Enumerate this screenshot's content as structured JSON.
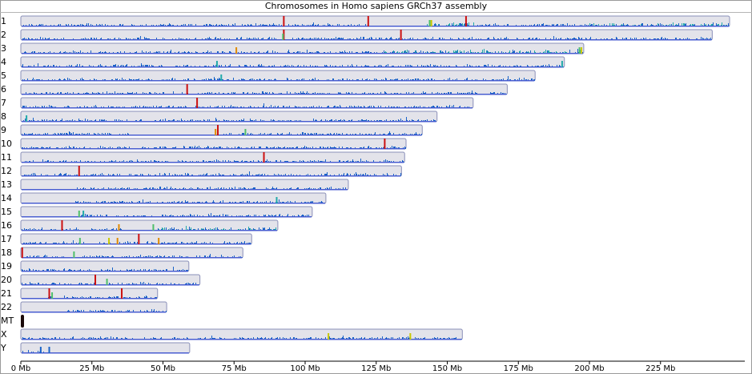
{
  "window": {
    "title": "Chromosomes in Homo sapiens GRCh37 assembly"
  },
  "chart_data": {
    "type": "ideogram",
    "title": "Chromosomes in Homo sapiens GRCh37 assembly",
    "x_unit": "Mb",
    "xlim": [
      0,
      250
    ],
    "x_ticks": [
      0,
      25,
      50,
      75,
      100,
      125,
      150,
      175,
      200,
      225
    ],
    "x_tick_labels": [
      "0 Mb",
      "25 Mb",
      "50 Mb",
      "75 Mb",
      "100 Mb",
      "125 Mb",
      "150 Mb",
      "175 Mb",
      "200 Mb",
      "225 Mb"
    ],
    "colors": {
      "chromosome_fill": "#e3e3ea",
      "chromosome_border": "#4a5ed0",
      "density_blue": "#1a63c8",
      "density_teal": "#22aaaa",
      "density_green": "#4fbf6a",
      "marker_red": "#cc1111",
      "marker_orange": "#e08a00",
      "marker_yellow": "#c8c800",
      "mt_fill": "#1a0a0a"
    },
    "chromosomes": [
      {
        "name": "1",
        "length_mb": 249.3,
        "gaps": [
          [
            121.5,
            142.6
          ]
        ],
        "teal_regions": [
          [
            140,
            160
          ],
          [
            200,
            249.3
          ]
        ],
        "markers": [
          {
            "pos_mb": 92.5,
            "color": "red"
          },
          {
            "pos_mb": 122.2,
            "color": "red"
          },
          {
            "pos_mb": 156.6,
            "color": "red"
          },
          {
            "pos_mb": 143.8,
            "color": "green"
          },
          {
            "pos_mb": 144.4,
            "color": "yellow"
          }
        ]
      },
      {
        "name": "2",
        "length_mb": 243.2,
        "gaps": [
          [
            90.5,
            95.3
          ]
        ],
        "teal_regions": [],
        "markers": [
          {
            "pos_mb": 92.5,
            "color": "red"
          },
          {
            "pos_mb": 133.7,
            "color": "red"
          },
          {
            "pos_mb": 92.2,
            "color": "green"
          }
        ]
      },
      {
        "name": "3",
        "length_mb": 198.0,
        "gaps": [
          [
            90.5,
            93.7
          ]
        ],
        "teal_regions": [
          [
            127,
            198
          ]
        ],
        "markers": [
          {
            "pos_mb": 75.8,
            "color": "orange"
          },
          {
            "pos_mb": 196.5,
            "color": "green"
          },
          {
            "pos_mb": 197.2,
            "color": "yellow"
          }
        ]
      },
      {
        "name": "4",
        "length_mb": 191.2,
        "gaps": [
          [
            49.7,
            52.7
          ]
        ],
        "teal_regions": [],
        "markers": [
          {
            "pos_mb": 69.0,
            "color": "teal"
          },
          {
            "pos_mb": 190.4,
            "color": "teal"
          }
        ]
      },
      {
        "name": "5",
        "length_mb": 180.9,
        "gaps": [
          [
            46.5,
            49.4
          ]
        ],
        "teal_regions": [],
        "markers": [
          {
            "pos_mb": 70.5,
            "color": "teal"
          }
        ]
      },
      {
        "name": "6",
        "length_mb": 171.1,
        "gaps": [
          [
            58.8,
            62.0
          ]
        ],
        "teal_regions": [],
        "markers": [
          {
            "pos_mb": 58.5,
            "color": "red"
          }
        ]
      },
      {
        "name": "7",
        "length_mb": 159.1,
        "gaps": [
          [
            58.1,
            61.1
          ]
        ],
        "teal_regions": [],
        "markers": [
          {
            "pos_mb": 62.0,
            "color": "red"
          }
        ]
      },
      {
        "name": "8",
        "length_mb": 146.4,
        "gaps": [
          [
            43.8,
            47.0
          ]
        ],
        "teal_regions": [],
        "markers": [
          {
            "pos_mb": 2.0,
            "color": "teal"
          }
        ]
      },
      {
        "name": "9",
        "length_mb": 141.2,
        "gaps": [
          [
            38.5,
            71.0
          ]
        ],
        "teal_regions": [],
        "markers": [
          {
            "pos_mb": 68.5,
            "color": "orange"
          },
          {
            "pos_mb": 69.3,
            "color": "red"
          },
          {
            "pos_mb": 79.0,
            "color": "green"
          }
        ]
      },
      {
        "name": "10",
        "length_mb": 135.5,
        "gaps": [
          [
            38.9,
            42.4
          ]
        ],
        "teal_regions": [],
        "markers": [
          {
            "pos_mb": 128.0,
            "color": "red"
          }
        ]
      },
      {
        "name": "11",
        "length_mb": 135.0,
        "gaps": [
          [
            51.6,
            55.0
          ]
        ],
        "teal_regions": [],
        "markers": [
          {
            "pos_mb": 85.5,
            "color": "red"
          }
        ]
      },
      {
        "name": "12",
        "length_mb": 133.9,
        "gaps": [
          [
            34.9,
            38.0
          ]
        ],
        "teal_regions": [],
        "markers": [
          {
            "pos_mb": 20.5,
            "color": "red"
          }
        ]
      },
      {
        "name": "13",
        "length_mb": 115.2,
        "gaps": [
          [
            0,
            19.0
          ]
        ],
        "teal_regions": [],
        "markers": []
      },
      {
        "name": "14",
        "length_mb": 107.3,
        "gaps": [
          [
            0,
            19.0
          ]
        ],
        "teal_regions": [],
        "markers": [
          {
            "pos_mb": 90.0,
            "color": "teal"
          }
        ]
      },
      {
        "name": "15",
        "length_mb": 102.5,
        "gaps": [
          [
            0,
            20.0
          ]
        ],
        "teal_regions": [],
        "markers": [
          {
            "pos_mb": 20.5,
            "color": "green"
          },
          {
            "pos_mb": 22.0,
            "color": "teal"
          }
        ]
      },
      {
        "name": "16",
        "length_mb": 90.4,
        "gaps": [
          [
            35.3,
            46.5
          ]
        ],
        "teal_regions": [
          [
            46.5,
            90.4
          ]
        ],
        "markers": [
          {
            "pos_mb": 14.5,
            "color": "red"
          },
          {
            "pos_mb": 34.5,
            "color": "orange"
          },
          {
            "pos_mb": 46.6,
            "color": "green"
          }
        ]
      },
      {
        "name": "17",
        "length_mb": 81.2,
        "gaps": [
          [
            22.3,
            25.3
          ]
        ],
        "teal_regions": [],
        "markers": [
          {
            "pos_mb": 20.8,
            "color": "green"
          },
          {
            "pos_mb": 31.0,
            "color": "yellow"
          },
          {
            "pos_mb": 34.0,
            "color": "orange"
          },
          {
            "pos_mb": 41.5,
            "color": "red"
          },
          {
            "pos_mb": 48.5,
            "color": "orange"
          }
        ]
      },
      {
        "name": "18",
        "length_mb": 78.1,
        "gaps": [
          [
            15.4,
            18.5
          ]
        ],
        "teal_regions": [],
        "markers": [
          {
            "pos_mb": 0.5,
            "color": "red"
          },
          {
            "pos_mb": 18.7,
            "color": "green"
          }
        ]
      },
      {
        "name": "19",
        "length_mb": 59.1,
        "gaps": [
          [
            24.6,
            27.7
          ]
        ],
        "teal_regions": [],
        "markers": []
      },
      {
        "name": "20",
        "length_mb": 63.0,
        "gaps": [
          [
            26.4,
            29.6
          ]
        ],
        "teal_regions": [],
        "markers": [
          {
            "pos_mb": 26.2,
            "color": "red"
          },
          {
            "pos_mb": 30.3,
            "color": "green"
          }
        ]
      },
      {
        "name": "21",
        "length_mb": 48.1,
        "gaps": [
          [
            0,
            9.4
          ],
          [
            11.3,
            14.3
          ]
        ],
        "teal_regions": [],
        "markers": [
          {
            "pos_mb": 10.0,
            "color": "red"
          },
          {
            "pos_mb": 11.0,
            "color": "green"
          },
          {
            "pos_mb": 35.5,
            "color": "red"
          }
        ]
      },
      {
        "name": "22",
        "length_mb": 51.3,
        "gaps": [
          [
            0,
            16.0
          ]
        ],
        "teal_regions": [],
        "markers": []
      },
      {
        "name": "MT",
        "length_mb": 0.0166,
        "gaps": [],
        "teal_regions": [],
        "markers": []
      },
      {
        "name": "X",
        "length_mb": 155.3,
        "gaps": [
          [
            58.6,
            61.7
          ]
        ],
        "teal_regions": [],
        "markers": [
          {
            "pos_mb": 108.2,
            "color": "yellow"
          },
          {
            "pos_mb": 137.0,
            "color": "yellow"
          }
        ]
      },
      {
        "name": "Y",
        "length_mb": 59.4,
        "gaps": [
          [
            10.1,
            59.4
          ]
        ],
        "teal_regions": [],
        "markers": [
          {
            "pos_mb": 7.0,
            "color": "blue"
          },
          {
            "pos_mb": 10.0,
            "color": "blue"
          }
        ]
      }
    ]
  }
}
